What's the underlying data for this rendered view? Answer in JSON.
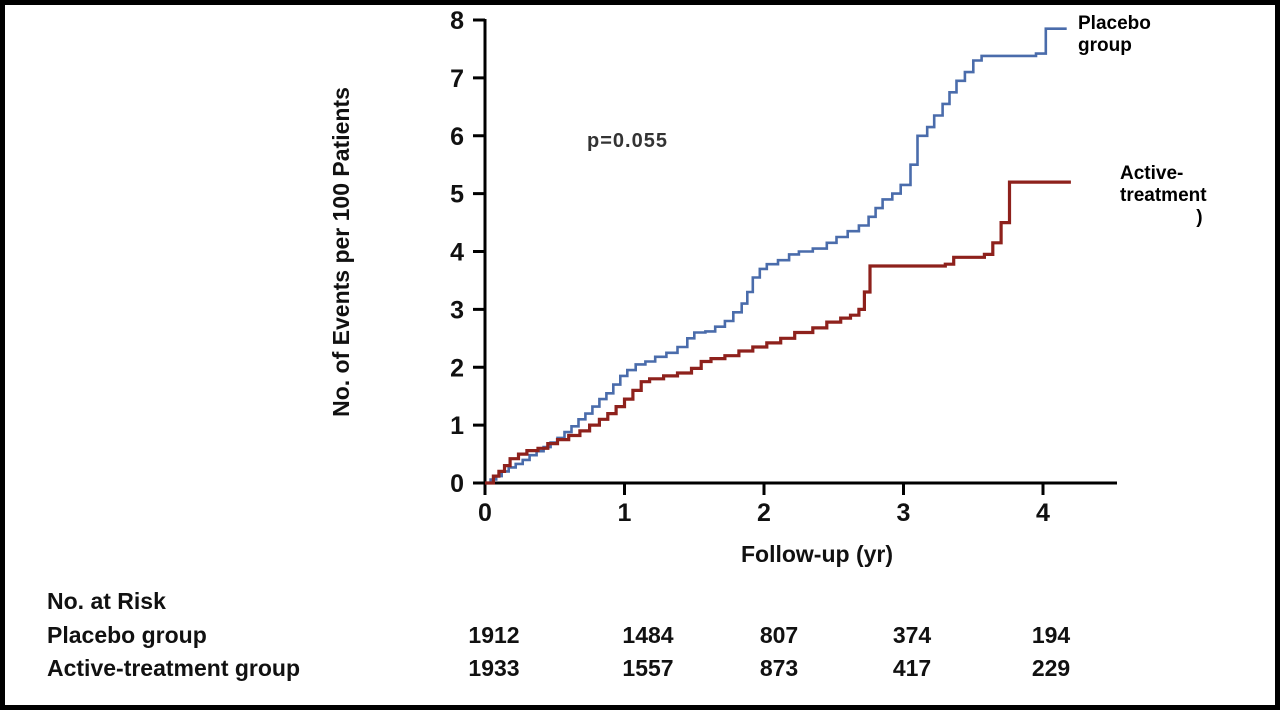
{
  "chart_data": {
    "type": "line",
    "subtype": "step-cumulative-incidence",
    "title": "",
    "xlabel": "Follow-up (yr)",
    "ylabel": "No. of Events per 100 Patients",
    "xlim": [
      0,
      4.55
    ],
    "ylim": [
      0,
      8
    ],
    "x_ticks": [
      0,
      1,
      2,
      3,
      4
    ],
    "y_ticks": [
      0,
      1,
      2,
      3,
      4,
      5,
      6,
      7,
      8
    ],
    "annotation": "p=0.055",
    "grid": false,
    "legend_position": "right-outside",
    "series": [
      {
        "name": "Placebo group",
        "color": "#4a6cab",
        "points": [
          [
            0,
            0
          ],
          [
            0.04,
            0.06
          ],
          [
            0.08,
            0.12
          ],
          [
            0.12,
            0.2
          ],
          [
            0.17,
            0.27
          ],
          [
            0.22,
            0.33
          ],
          [
            0.27,
            0.4
          ],
          [
            0.32,
            0.48
          ],
          [
            0.37,
            0.55
          ],
          [
            0.42,
            0.62
          ],
          [
            0.47,
            0.7
          ],
          [
            0.52,
            0.78
          ],
          [
            0.57,
            0.88
          ],
          [
            0.62,
            0.98
          ],
          [
            0.67,
            1.1
          ],
          [
            0.72,
            1.2
          ],
          [
            0.77,
            1.32
          ],
          [
            0.82,
            1.45
          ],
          [
            0.87,
            1.55
          ],
          [
            0.92,
            1.7
          ],
          [
            0.97,
            1.85
          ],
          [
            1.02,
            1.95
          ],
          [
            1.08,
            2.05
          ],
          [
            1.15,
            2.1
          ],
          [
            1.22,
            2.18
          ],
          [
            1.3,
            2.25
          ],
          [
            1.38,
            2.35
          ],
          [
            1.45,
            2.5
          ],
          [
            1.5,
            2.6
          ],
          [
            1.58,
            2.62
          ],
          [
            1.65,
            2.7
          ],
          [
            1.72,
            2.8
          ],
          [
            1.78,
            2.95
          ],
          [
            1.84,
            3.1
          ],
          [
            1.88,
            3.3
          ],
          [
            1.92,
            3.55
          ],
          [
            1.97,
            3.7
          ],
          [
            2.02,
            3.78
          ],
          [
            2.1,
            3.85
          ],
          [
            2.18,
            3.95
          ],
          [
            2.25,
            4.0
          ],
          [
            2.35,
            4.05
          ],
          [
            2.45,
            4.15
          ],
          [
            2.52,
            4.25
          ],
          [
            2.6,
            4.35
          ],
          [
            2.68,
            4.45
          ],
          [
            2.75,
            4.6
          ],
          [
            2.8,
            4.75
          ],
          [
            2.85,
            4.9
          ],
          [
            2.92,
            5.0
          ],
          [
            2.98,
            5.15
          ],
          [
            3.05,
            5.5
          ],
          [
            3.1,
            6.0
          ],
          [
            3.17,
            6.15
          ],
          [
            3.22,
            6.35
          ],
          [
            3.28,
            6.55
          ],
          [
            3.33,
            6.75
          ],
          [
            3.38,
            6.95
          ],
          [
            3.44,
            7.1
          ],
          [
            3.5,
            7.3
          ],
          [
            3.56,
            7.38
          ],
          [
            3.95,
            7.42
          ],
          [
            4.02,
            7.85
          ],
          [
            4.17,
            7.85
          ]
        ]
      },
      {
        "name": "Active-treatment group",
        "color": "#8e211c",
        "points": [
          [
            0,
            0
          ],
          [
            0.06,
            0.12
          ],
          [
            0.1,
            0.2
          ],
          [
            0.14,
            0.3
          ],
          [
            0.18,
            0.42
          ],
          [
            0.24,
            0.5
          ],
          [
            0.3,
            0.56
          ],
          [
            0.38,
            0.6
          ],
          [
            0.45,
            0.68
          ],
          [
            0.52,
            0.75
          ],
          [
            0.6,
            0.82
          ],
          [
            0.68,
            0.9
          ],
          [
            0.75,
            1.0
          ],
          [
            0.82,
            1.1
          ],
          [
            0.88,
            1.2
          ],
          [
            0.94,
            1.32
          ],
          [
            1.0,
            1.45
          ],
          [
            1.06,
            1.6
          ],
          [
            1.12,
            1.75
          ],
          [
            1.18,
            1.8
          ],
          [
            1.28,
            1.85
          ],
          [
            1.38,
            1.9
          ],
          [
            1.48,
            1.98
          ],
          [
            1.55,
            2.1
          ],
          [
            1.62,
            2.15
          ],
          [
            1.72,
            2.2
          ],
          [
            1.82,
            2.28
          ],
          [
            1.92,
            2.35
          ],
          [
            2.02,
            2.42
          ],
          [
            2.12,
            2.5
          ],
          [
            2.22,
            2.6
          ],
          [
            2.35,
            2.68
          ],
          [
            2.45,
            2.78
          ],
          [
            2.55,
            2.85
          ],
          [
            2.62,
            2.9
          ],
          [
            2.68,
            3.0
          ],
          [
            2.72,
            3.3
          ],
          [
            2.76,
            3.75
          ],
          [
            3.3,
            3.78
          ],
          [
            3.36,
            3.9
          ],
          [
            3.58,
            3.95
          ],
          [
            3.64,
            4.15
          ],
          [
            3.7,
            4.5
          ],
          [
            3.76,
            5.2
          ],
          [
            4.2,
            5.2
          ]
        ]
      }
    ]
  },
  "legend": {
    "placebo": "Placebo\ngroup",
    "active": "Active-\ntreatment",
    "active_suffix": ")"
  },
  "risk_table": {
    "title": "No. at Risk",
    "rows": [
      {
        "label": "Placebo group",
        "values": [
          "1912",
          "1484",
          "807",
          "374",
          "194"
        ]
      },
      {
        "label": "Active-treatment group",
        "values": [
          "1933",
          "1557",
          "873",
          "417",
          "229"
        ]
      }
    ]
  }
}
